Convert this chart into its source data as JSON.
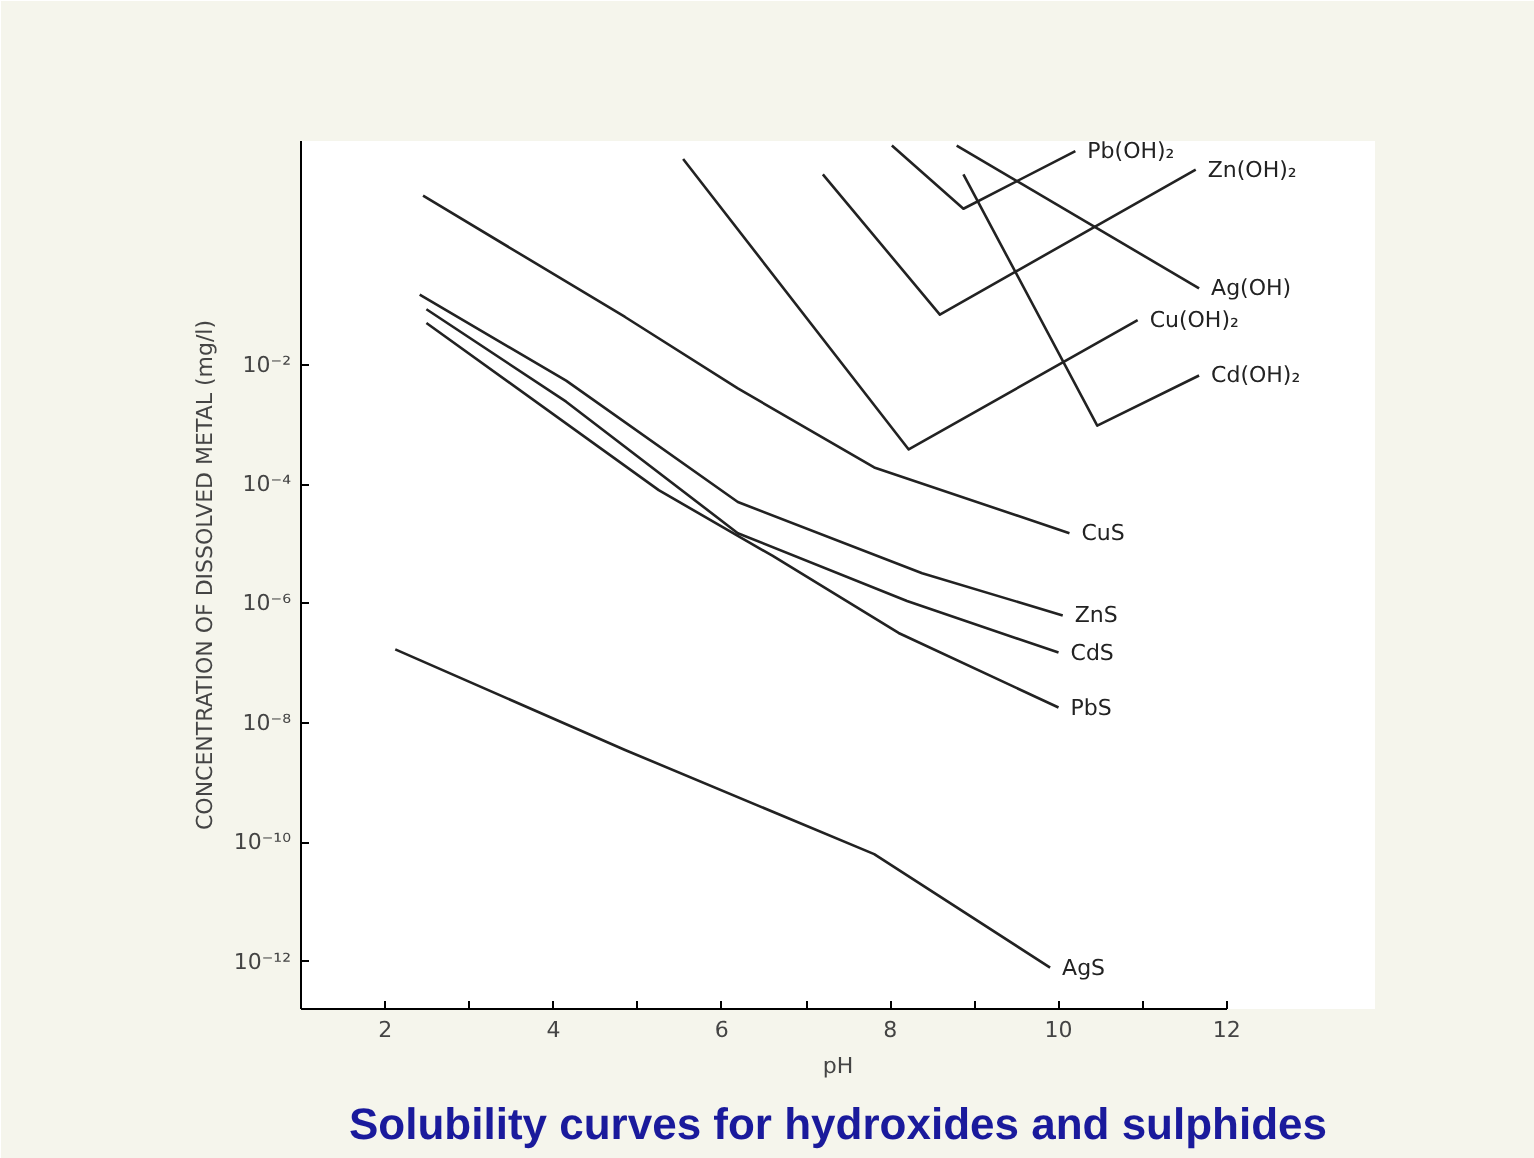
{
  "chart_data": {
    "type": "line",
    "title": "Solubility curves for hydroxides and sulphides",
    "xlabel": "pH",
    "ylabel": "CONCENTRATION OF DISSOLVED METAL (mg/l)",
    "log": "y",
    "grid": false,
    "marker": "none",
    "line_style": "solid",
    "xlim": [
      1,
      12
    ],
    "ylim": [
      1.6e-13,
      56
    ],
    "xticks": [
      2,
      {
        "value": 3,
        "label": null
      },
      4,
      {
        "value": 5,
        "label": null
      },
      6,
      {
        "value": 7,
        "label": null
      },
      8,
      {
        "value": 9,
        "label": null
      },
      10,
      {
        "value": 11,
        "label": null
      },
      12
    ],
    "yticks": [
      {
        "value": 0.01,
        "label": "10⁻²"
      },
      {
        "value": 0.0001,
        "label": "10⁻⁴"
      },
      {
        "value": 1e-06,
        "label": "10⁻⁶"
      },
      {
        "value": 1e-08,
        "label": "10⁻⁸"
      },
      {
        "value": 1e-10,
        "label": "10⁻¹⁰"
      },
      {
        "value": 1e-12,
        "label": "10⁻¹²"
      }
    ],
    "series": [
      {
        "name": "CuS",
        "color": "#222222",
        "x": [
          2.45,
          4.85,
          6.19,
          7.81,
          10.13
        ],
        "values": [
          6.8,
          0.063,
          0.004,
          0.00019,
          1.5e-05
        ]
      },
      {
        "name": "ZnS",
        "color": "#222222",
        "x": [
          2.41,
          4.15,
          6.19,
          8.38,
          10.05
        ],
        "values": [
          0.15,
          0.0054,
          5e-05,
          3.2e-06,
          6.3e-07
        ]
      },
      {
        "name": "CdS",
        "color": "#222222",
        "x": [
          2.49,
          4.15,
          6.19,
          8.2,
          10.0
        ],
        "values": [
          0.085,
          0.0024,
          1.5e-05,
          1.1e-06,
          1.5e-07
        ]
      },
      {
        "name": "PbS",
        "color": "#222222",
        "x": [
          2.49,
          5.25,
          6.6,
          8.1,
          10.0
        ],
        "values": [
          0.05,
          7.9e-05,
          6.3e-06,
          3.2e-07,
          1.8e-08
        ]
      },
      {
        "name": "AgS",
        "color": "#222222",
        "x": [
          2.12,
          4.85,
          7.81,
          9.9
        ],
        "values": [
          1.7e-07,
          3.5e-09,
          6.3e-11,
          7.9e-13
        ]
      },
      {
        "name": "Cu(OH)₂",
        "color": "#222222",
        "x": [
          5.54,
          8.22,
          10.94
        ],
        "values": [
          28,
          0.00038,
          0.056
        ]
      },
      {
        "name": "Zn(OH)₂",
        "color": "#222222",
        "x": [
          7.2,
          8.59,
          11.63
        ],
        "values": [
          15.5,
          0.069,
          18.6
        ]
      },
      {
        "name": "Pb(OH)₂",
        "color": "#222222",
        "x": [
          8.02,
          8.87,
          10.2
        ],
        "values": [
          47,
          4.1,
          38
        ]
      },
      {
        "name": "Ag(OH)",
        "color": "#222222",
        "x": [
          8.79,
          11.67
        ],
        "values": [
          47,
          0.19
        ]
      },
      {
        "name": "Cd(OH)₂",
        "color": "#222222",
        "x": [
          8.87,
          10.46,
          11.67
        ],
        "values": [
          15.5,
          0.00095,
          0.0066
        ]
      }
    ]
  }
}
